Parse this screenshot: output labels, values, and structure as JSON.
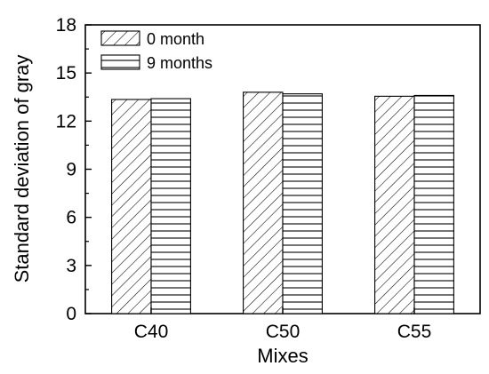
{
  "chart_data": {
    "type": "bar",
    "title": "",
    "xlabel": "Mixes",
    "ylabel": "Standard deviation of gray",
    "categories": [
      "C40",
      "C50",
      "C55"
    ],
    "series": [
      {
        "name": "0 month",
        "values": [
          13.35,
          13.8,
          13.55
        ],
        "pattern": "diagonal-hatch"
      },
      {
        "name": "9 months",
        "values": [
          13.4,
          13.7,
          13.6
        ],
        "pattern": "horizontal-lines"
      }
    ],
    "ylim": [
      0,
      18
    ],
    "yticks": [
      "0",
      "3",
      "6",
      "9",
      "12",
      "15",
      "18"
    ],
    "grid": false,
    "legend_position": "top-left"
  }
}
